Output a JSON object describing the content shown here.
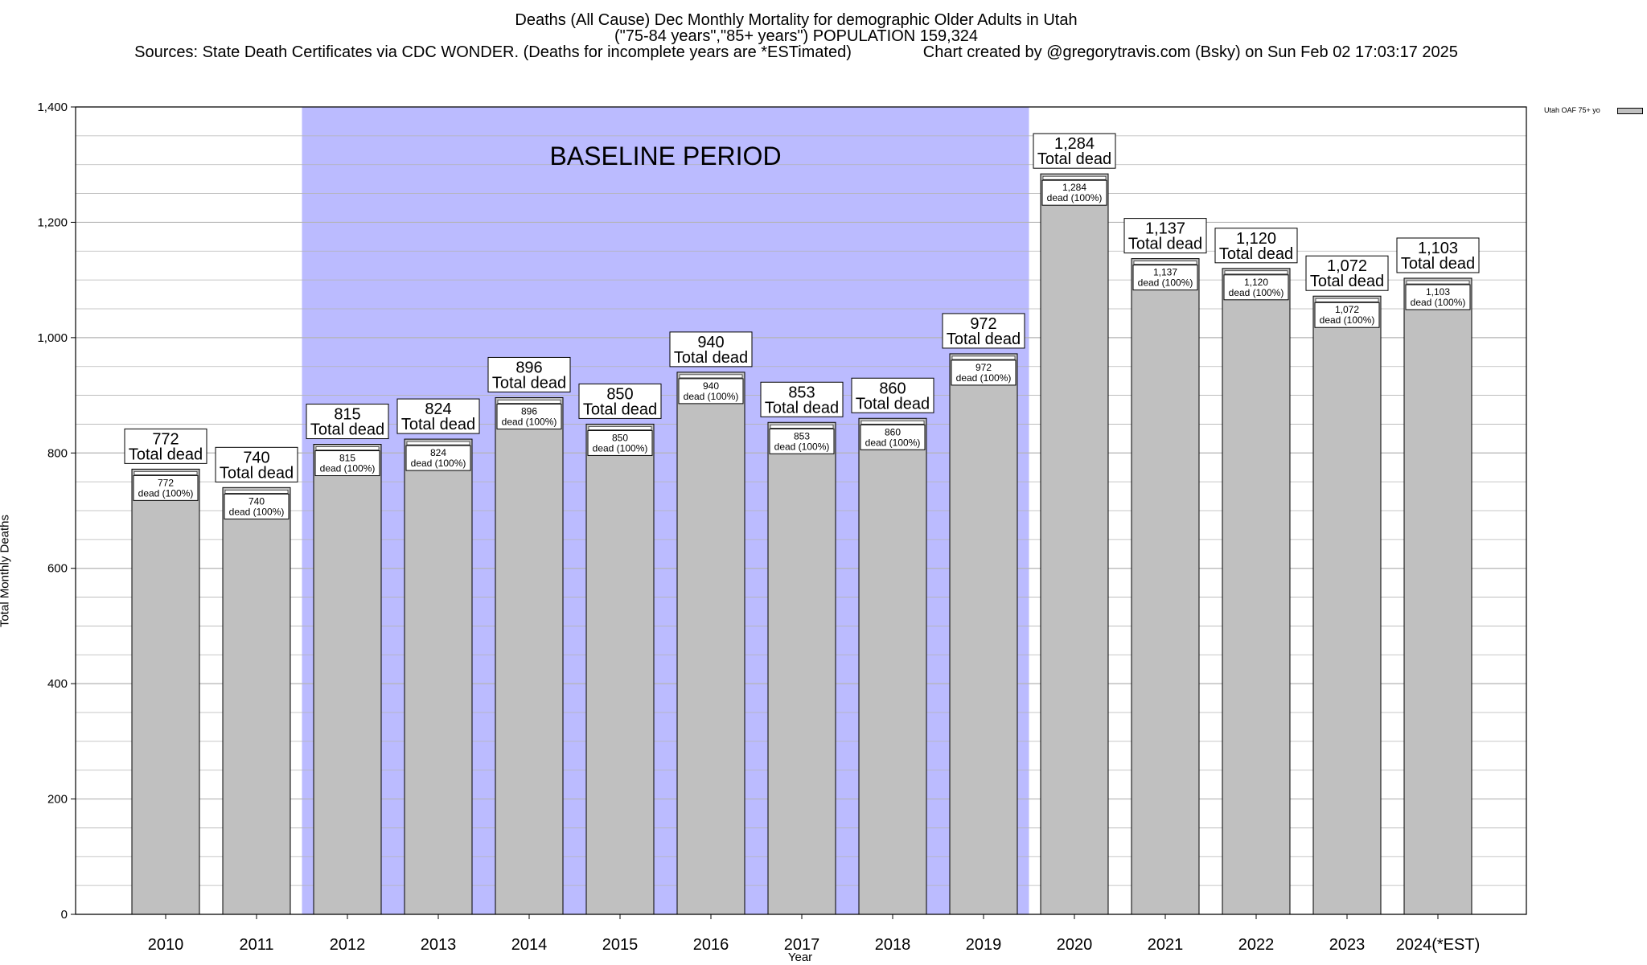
{
  "title": {
    "line1": "Deaths (All Cause) Dec Monthly Mortality for demographic Older Adults in Utah",
    "line2": "(\"75-84 years\",\"85+ years\") POPULATION 159,324",
    "line3": "Sources: State Death Certificates via CDC WONDER. (Deaths for incomplete years are *ESTimated)                Chart created by @gregorytravis.com (Bsky) on Sun Feb 02 17:03:17 2025"
  },
  "legend": {
    "label": "Utah OAF 75+ yo"
  },
  "chart_data": {
    "type": "bar",
    "categories": [
      "2010",
      "2011",
      "2012",
      "2013",
      "2014",
      "2015",
      "2016",
      "2017",
      "2018",
      "2019",
      "2020",
      "2021",
      "2022",
      "2023",
      "2024(*EST)"
    ],
    "series": [
      {
        "name": "Utah OAF 75+ yo",
        "values": [
          772,
          740,
          815,
          824,
          896,
          850,
          940,
          853,
          860,
          972,
          1284,
          1137,
          1120,
          1072,
          1103
        ]
      }
    ],
    "value_labels": [
      "772",
      "740",
      "815",
      "824",
      "896",
      "850",
      "940",
      "853",
      "860",
      "972",
      "1,284",
      "1,137",
      "1,120",
      "1,072",
      "1,103"
    ],
    "top_label_suffix": "Total dead",
    "inner_label_suffix": "dead (100%)",
    "baseline_period": {
      "label": "BASELINE PERIOD",
      "from": "2012",
      "to": "2019"
    },
    "xlabel": "Year",
    "ylabel": "Total Monthly Deaths",
    "ylim": [
      0,
      1400
    ],
    "yticks": [
      0,
      200,
      400,
      600,
      800,
      1000,
      1200,
      1400
    ],
    "ytick_labels": [
      "0",
      "200",
      "400",
      "600",
      "800",
      "1,000",
      "1,200",
      "1,400"
    ],
    "grid": true,
    "colors": {
      "bar": "#c0c0c0",
      "baseline": "#bbbbff",
      "grid": "#b4b4b4"
    }
  }
}
